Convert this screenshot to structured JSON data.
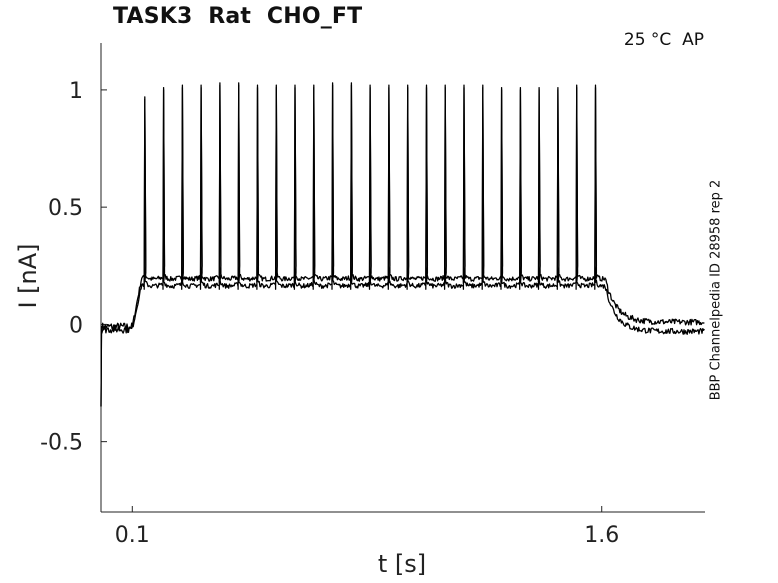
{
  "chart_data": {
    "type": "line",
    "title": "TASK3  Rat  CHO_FT",
    "annotation": "25 °C  AP",
    "side_label": "BBP Channelpedia ID 28958 rep 2",
    "xlabel": "t [s]",
    "ylabel": "I [nA]",
    "xlim": [
      0,
      1.93
    ],
    "ylim": [
      -0.8,
      1.2
    ],
    "x_ticks": [
      0.1,
      1.6
    ],
    "x_tick_labels": [
      "0.1",
      "1.6"
    ],
    "y_ticks": [
      1,
      0.5,
      0,
      -0.5
    ],
    "y_tick_labels": [
      "1",
      "0.5",
      "0",
      "-0.5"
    ],
    "grid": false,
    "line_color": "#000000",
    "stimulus": {
      "start": 0.1,
      "end": 1.6,
      "baseline": -0.01,
      "plateau": 0.19
    },
    "spike_times": [
      0.14,
      0.2,
      0.26,
      0.32,
      0.38,
      0.44,
      0.5,
      0.56,
      0.62,
      0.68,
      0.74,
      0.8,
      0.86,
      0.92,
      0.98,
      1.04,
      1.1,
      1.16,
      1.22,
      1.28,
      1.34,
      1.4,
      1.46,
      1.52,
      1.58
    ],
    "spike_peaks": [
      0.97,
      1.01,
      1.02,
      1.02,
      1.03,
      1.03,
      1.02,
      1.02,
      1.02,
      1.02,
      1.03,
      1.03,
      1.02,
      1.02,
      1.02,
      1.02,
      1.02,
      1.02,
      1.02,
      1.01,
      1.01,
      1.01,
      1.01,
      1.02,
      1.02
    ],
    "series": [
      {
        "baseline": -0.01,
        "plateau": 0.2,
        "after": 0.01
      },
      {
        "baseline": -0.02,
        "plateau": 0.17,
        "after": -0.03
      }
    ]
  }
}
